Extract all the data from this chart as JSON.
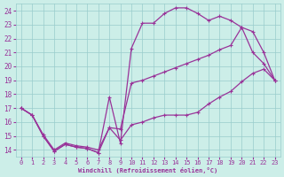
{
  "xlabel": "Windchill (Refroidissement éolien,°C)",
  "bg_color": "#cceee8",
  "grid_color": "#99cccc",
  "line_color": "#993399",
  "xlim": [
    -0.5,
    23.5
  ],
  "ylim": [
    13.5,
    24.5
  ],
  "xticks": [
    0,
    1,
    2,
    3,
    4,
    5,
    6,
    7,
    8,
    9,
    10,
    11,
    12,
    13,
    14,
    15,
    16,
    17,
    18,
    19,
    20,
    21,
    22,
    23
  ],
  "yticks": [
    14,
    15,
    16,
    17,
    18,
    19,
    20,
    21,
    22,
    23,
    24
  ],
  "line1_x": [
    0,
    1,
    2,
    3,
    4,
    5,
    6,
    7,
    8,
    9,
    10,
    11,
    12,
    13,
    14,
    15,
    16,
    17,
    18,
    19,
    20,
    21,
    22,
    23
  ],
  "line1_y": [
    17.0,
    16.5,
    15.0,
    13.9,
    14.4,
    14.2,
    14.1,
    13.8,
    17.8,
    14.5,
    21.3,
    23.1,
    23.1,
    23.8,
    24.2,
    24.2,
    23.8,
    23.3,
    23.6,
    23.3,
    22.8,
    21.0,
    20.2,
    19.0
  ],
  "line2_x": [
    0,
    1,
    2,
    3,
    4,
    5,
    6,
    7,
    8,
    9,
    10,
    11,
    12,
    13,
    14,
    15,
    16,
    17,
    18,
    19,
    20,
    21,
    22,
    23
  ],
  "line2_y": [
    17.0,
    16.5,
    15.1,
    14.0,
    14.5,
    14.3,
    14.2,
    14.0,
    15.6,
    15.5,
    18.8,
    19.0,
    19.3,
    19.6,
    19.9,
    20.2,
    20.5,
    20.8,
    21.2,
    21.5,
    22.8,
    22.5,
    21.0,
    19.0
  ],
  "line3_x": [
    0,
    1,
    2,
    3,
    4,
    5,
    6,
    7,
    8,
    9,
    10,
    11,
    12,
    13,
    14,
    15,
    16,
    17,
    18,
    19,
    20,
    21,
    22,
    23
  ],
  "line3_y": [
    17.0,
    16.5,
    15.0,
    13.9,
    14.4,
    14.2,
    14.1,
    13.8,
    15.6,
    14.7,
    15.8,
    16.0,
    16.3,
    16.5,
    16.5,
    16.5,
    16.7,
    17.3,
    17.8,
    18.2,
    18.9,
    19.5,
    19.8,
    19.0
  ]
}
